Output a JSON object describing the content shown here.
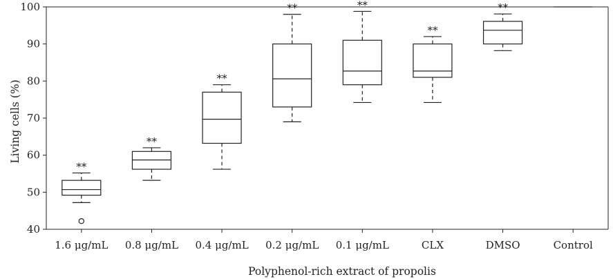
{
  "chart_data": {
    "type": "box",
    "xlabel": "Polyphenol-rich extract of propolis",
    "ylabel": "Living cells (%)",
    "ylim": [
      40,
      100
    ],
    "yticks": [
      40,
      50,
      60,
      70,
      80,
      90,
      100
    ],
    "grid": false,
    "categories": [
      "1.6 μg/mL",
      "0.8 μg/mL",
      "0.4 μg/mL",
      "0.2 μg/mL",
      "0.1 μg/mL",
      "CLX",
      "DMSO",
      "Control"
    ],
    "boxes": [
      {
        "whisker_low": 47.2,
        "q1": 49.2,
        "median": 50.7,
        "q3": 53.2,
        "whisker_high": 55.2,
        "outliers": [
          42.2
        ],
        "significance": "**"
      },
      {
        "whisker_low": 53.2,
        "q1": 56.2,
        "median": 58.7,
        "q3": 61.0,
        "whisker_high": 62.0,
        "outliers": [],
        "significance": "**"
      },
      {
        "whisker_low": 56.2,
        "q1": 63.2,
        "median": 69.7,
        "q3": 77.0,
        "whisker_high": 79.0,
        "outliers": [],
        "significance": "**"
      },
      {
        "whisker_low": 69.0,
        "q1": 73.0,
        "median": 80.6,
        "q3": 90.0,
        "whisker_high": 98.0,
        "outliers": [],
        "significance": "**"
      },
      {
        "whisker_low": 74.2,
        "q1": 79.0,
        "median": 82.7,
        "q3": 91.0,
        "whisker_high": 98.8,
        "outliers": [],
        "significance": "**"
      },
      {
        "whisker_low": 74.2,
        "q1": 81.0,
        "median": 82.7,
        "q3": 90.0,
        "whisker_high": 92.0,
        "outliers": [],
        "significance": "**"
      },
      {
        "whisker_low": 88.2,
        "q1": 90.0,
        "median": 93.7,
        "q3": 96.1,
        "whisker_high": 98.1,
        "outliers": [],
        "significance": "**"
      },
      {
        "whisker_low": 100,
        "q1": 100,
        "median": 100,
        "q3": 100,
        "whisker_high": 100,
        "outliers": [],
        "significance": ""
      }
    ]
  }
}
